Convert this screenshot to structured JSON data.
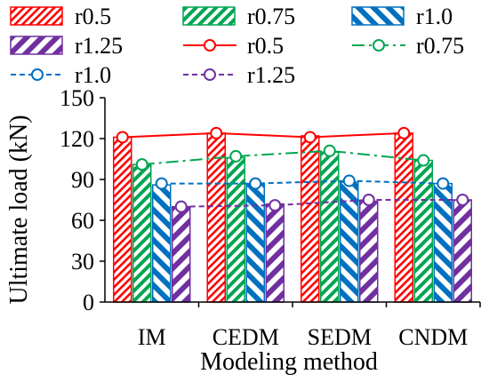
{
  "chart_data": {
    "type": "bar",
    "title": "",
    "xlabel": "Modeling method",
    "ylabel": "Ultimate load (kN)",
    "categories": [
      "IM",
      "CEDM",
      "SEDM",
      "CNDM"
    ],
    "yticks": [
      "0",
      "30",
      "60",
      "90",
      "120",
      "150"
    ],
    "ylim": [
      0,
      150
    ],
    "grid": false,
    "legend_placement": "top",
    "bar_series": [
      {
        "name": "r0.5",
        "color": "#ff0000",
        "pattern": "dense-hatch",
        "values": [
          121,
          124,
          122,
          124
        ]
      },
      {
        "name": "r0.75",
        "color": "#00a651",
        "pattern": "diagonal-hatch",
        "values": [
          101,
          106,
          110,
          104
        ]
      },
      {
        "name": "r1.0",
        "color": "#0070c0",
        "pattern": "backslash-hatch",
        "values": [
          86,
          87,
          88,
          87
        ]
      },
      {
        "name": "r1.25",
        "color": "#7030a0",
        "pattern": "slash-hatch",
        "values": [
          70,
          72,
          74,
          75
        ]
      }
    ],
    "line_series": [
      {
        "name": "r0.5",
        "color": "#ff0000",
        "dash": "solid",
        "values": [
          121,
          124,
          121,
          124
        ]
      },
      {
        "name": "r0.75",
        "color": "#00a651",
        "dash": "dash-dot",
        "values": [
          101,
          107,
          111,
          104
        ]
      },
      {
        "name": "r1.0",
        "color": "#0070c0",
        "dash": "dashed",
        "values": [
          87,
          87,
          89,
          87
        ]
      },
      {
        "name": "r1.25",
        "color": "#7030a0",
        "dash": "dashed",
        "values": [
          70,
          71,
          75,
          75
        ]
      }
    ]
  }
}
